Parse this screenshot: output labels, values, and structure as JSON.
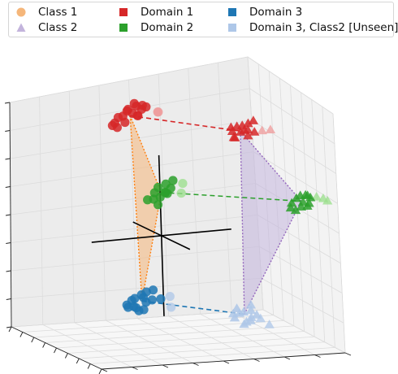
{
  "legend": {
    "items": [
      {
        "label": "Class 1",
        "marker": "circle",
        "color": "#f5b67a"
      },
      {
        "label": "Domain 1",
        "marker": "square",
        "color": "#d62728"
      },
      {
        "label": "Domain 3",
        "marker": "square",
        "color": "#1f77b4"
      },
      {
        "label": "Class 2",
        "marker": "triangle",
        "color": "#c3b4dc"
      },
      {
        "label": "Domain 2",
        "marker": "square",
        "color": "#2ca02c"
      },
      {
        "label": "Domain 3, Class2 [Unseen]",
        "marker": "square",
        "color": "#aec7e8"
      }
    ]
  },
  "chart_data": {
    "type": "scatter",
    "projection": "3d",
    "title": "",
    "xlabel": "",
    "ylabel": "",
    "zlabel": "",
    "tick_labels_visible": false,
    "grid": true,
    "legend_position": "top",
    "colors": {
      "domain1": "#d62728",
      "domain1_light": "#ef9a9a",
      "domain2": "#2ca02c",
      "domain2_light": "#98df8a",
      "domain3": "#1f77b4",
      "domain3_light": "#aec7e8",
      "class1_fill": "#f5b67a",
      "class1_edge": "#ff7f0e",
      "class2_fill": "#c3b4dc",
      "class2_edge": "#9467bd"
    },
    "series": [
      {
        "name": "Domain 1",
        "class": "Class 1",
        "marker": "circle",
        "color": "domain1",
        "x": [
          -2.9,
          -2.6,
          -2.7,
          -2.5,
          -2.35,
          -2.2,
          -2.55,
          -2.45,
          -2.3,
          -2.6,
          -2.15,
          -2.4,
          -2.75,
          -2.5,
          -2.28,
          -2.62
        ],
        "y": [
          0.2,
          -0.1,
          0.4,
          0.0,
          0.3,
          -0.2,
          -0.4,
          0.5,
          0.1,
          -0.3,
          0.2,
          0.6,
          -0.2,
          -0.5,
          0.4,
          0.3
        ],
        "z": [
          3.1,
          3.0,
          3.2,
          3.15,
          3.0,
          2.9,
          2.85,
          3.25,
          3.1,
          2.7,
          3.05,
          3.2,
          2.95,
          2.8,
          3.18,
          3.3
        ]
      },
      {
        "name": "Domain 1",
        "class": "Class 2",
        "marker": "triangle",
        "color": "domain1",
        "x": [
          1.1,
          1.3,
          1.2,
          1.45,
          1.0,
          1.35,
          1.5,
          1.25,
          1.15,
          1.4,
          1.05,
          1.55,
          1.3
        ],
        "y": [
          2.2,
          2.5,
          2.0,
          2.3,
          2.6,
          1.9,
          2.4,
          2.7,
          2.1,
          2.2,
          2.4,
          2.6,
          2.0
        ],
        "z": [
          3.1,
          3.2,
          3.0,
          3.05,
          2.95,
          3.15,
          2.9,
          3.25,
          2.8,
          3.0,
          3.1,
          3.0,
          2.85
        ]
      },
      {
        "name": "Domain 2",
        "class": "Class 1",
        "marker": "circle",
        "color": "domain2",
        "x": [
          -0.9,
          -0.7,
          -0.75,
          -0.5,
          -0.6,
          -0.4,
          -0.8,
          -0.55,
          -0.3,
          -0.65,
          -0.45,
          -0.85
        ],
        "y": [
          0.3,
          0.1,
          0.5,
          0.2,
          0.6,
          0.4,
          -0.1,
          0.0,
          0.3,
          0.7,
          0.1,
          0.5
        ],
        "z": [
          1.2,
          1.1,
          1.3,
          1.0,
          1.2,
          1.1,
          0.9,
          0.95,
          1.15,
          1.4,
          0.8,
          1.05
        ]
      },
      {
        "name": "Domain 2",
        "class": "Class 2",
        "marker": "triangle",
        "color": "domain2",
        "x": [
          2.3,
          2.5,
          2.4,
          2.6,
          2.2,
          2.55,
          2.7,
          2.35,
          2.45,
          2.65,
          2.3,
          2.6
        ],
        "y": [
          3.6,
          3.9,
          3.4,
          3.7,
          3.95,
          3.3,
          3.8,
          4.05,
          3.5,
          3.6,
          3.75,
          3.9
        ],
        "z": [
          1.2,
          1.3,
          1.1,
          1.15,
          1.25,
          1.0,
          1.05,
          1.2,
          0.9,
          1.35,
          0.95,
          1.1
        ]
      },
      {
        "name": "Domain 3",
        "class": "Class 1",
        "marker": "circle",
        "color": "domain3",
        "x": [
          -2.1,
          -1.9,
          -2.0,
          -1.8,
          -1.7,
          -2.2,
          -1.95,
          -1.6,
          -1.85,
          -2.05,
          -1.75,
          -1.5,
          -2.15,
          -1.65,
          -1.9
        ],
        "y": [
          -0.2,
          0.1,
          -0.4,
          0.0,
          0.3,
          -0.1,
          0.2,
          -0.3,
          0.4,
          0.0,
          -0.2,
          0.5,
          0.3,
          -0.5,
          0.1
        ],
        "z": [
          -2.2,
          -2.1,
          -2.3,
          -2.0,
          -2.15,
          -2.4,
          -2.25,
          -2.05,
          -1.9,
          -2.5,
          -2.35,
          -2.1,
          -2.0,
          -2.3,
          -2.45
        ]
      },
      {
        "name": "Domain 3, Class2 [Unseen]",
        "class": "Class 2",
        "marker": "triangle",
        "color": "domain3_light",
        "x": [
          0.9,
          1.1,
          1.0,
          1.2,
          0.85,
          1.15,
          1.3,
          1.05,
          0.95,
          1.25,
          1.1,
          1.0
        ],
        "y": [
          2.1,
          2.4,
          1.9,
          2.2,
          2.5,
          1.8,
          2.3,
          2.6,
          2.0,
          2.1,
          2.4,
          2.2
        ],
        "z": [
          -2.2,
          -2.1,
          -2.3,
          -2.4,
          -2.0,
          -2.15,
          -2.35,
          -2.25,
          -2.05,
          -2.45,
          -2.3,
          -2.15
        ]
      }
    ],
    "faded_points": {
      "description_free": true,
      "domain1_class1": [
        [
          -2.2,
          0.9,
          3.05
        ],
        [
          -2.4,
          1.0,
          3.0
        ]
      ],
      "domain1_class2": [
        [
          1.7,
          2.8,
          3.05
        ],
        [
          1.9,
          3.0,
          3.1
        ]
      ],
      "domain2_class1": [
        [
          -0.35,
          0.9,
          1.35
        ],
        [
          -0.25,
          0.8,
          1.1
        ]
      ],
      "domain2_class2": [
        [
          2.8,
          4.3,
          1.25
        ],
        [
          2.9,
          4.4,
          1.2
        ],
        [
          2.75,
          4.1,
          1.3
        ]
      ],
      "domain3_class1": [
        [
          -1.5,
          0.8,
          -2.05
        ],
        [
          -1.7,
          0.9,
          -2.4
        ]
      ],
      "domain3_class2": [
        [
          1.1,
          2.7,
          -2.35
        ],
        [
          1.3,
          2.9,
          -2.5
        ]
      ]
    },
    "regions": [
      {
        "class": "Class 1",
        "fill": "class1_fill",
        "edge": "class1_edge",
        "vertices": [
          [
            -2.5,
            0.1,
            3.0
          ],
          [
            -0.65,
            0.3,
            1.1
          ],
          [
            -1.9,
            0.05,
            -2.2
          ]
        ]
      },
      {
        "class": "Class 2",
        "fill": "class2_fill",
        "edge": "class2_edge",
        "vertices": [
          [
            1.25,
            2.25,
            3.0
          ],
          [
            2.45,
            3.7,
            1.15
          ],
          [
            1.05,
            2.2,
            -2.2
          ]
        ]
      }
    ],
    "links": [
      {
        "color": "domain1",
        "from": [
          -2.5,
          0.1,
          3.0
        ],
        "to": [
          1.25,
          2.25,
          3.0
        ]
      },
      {
        "color": "domain2",
        "from": [
          -0.65,
          0.3,
          1.1
        ],
        "to": [
          2.45,
          3.7,
          1.15
        ]
      },
      {
        "color": "domain3",
        "from": [
          -1.9,
          0.05,
          -2.2
        ],
        "to": [
          1.05,
          2.2,
          -2.2
        ]
      }
    ],
    "origin_axes": {
      "length": 2.3,
      "color": "#000000"
    },
    "xlim": [
      -3.5,
      3.5
    ],
    "ylim": [
      -3.5,
      4.5
    ],
    "zlim": [
      -3.0,
      3.8
    ]
  }
}
